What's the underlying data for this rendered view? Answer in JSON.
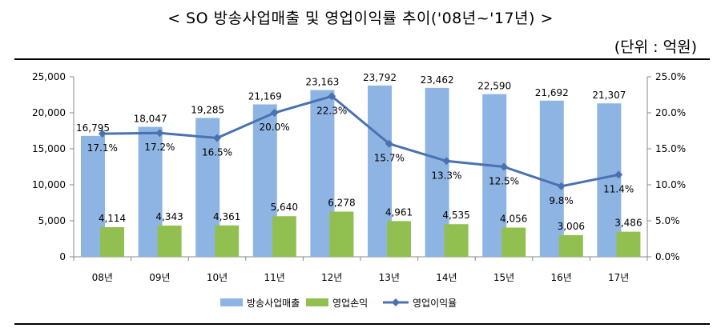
{
  "title": "< SO 방송사업매출 및 영업이익률 추이('08년~'17년) >",
  "unit": "(단위 : 억원)",
  "colors": {
    "revenue_bar": "#8DB4E2",
    "profit_bar": "#92C050",
    "margin_line": "#4A72B0"
  },
  "chart_data": {
    "type": "bar",
    "categories": [
      "08년",
      "09년",
      "10년",
      "11년",
      "12년",
      "13년",
      "14년",
      "15년",
      "16년",
      "17년"
    ],
    "series": [
      {
        "name": "방송사업매출",
        "kind": "bar",
        "axis": "left",
        "values": [
          16795,
          18047,
          19285,
          21169,
          23163,
          23792,
          23462,
          22590,
          21692,
          21307
        ],
        "labels": [
          "16,795",
          "18,047",
          "19,285",
          "21,169",
          "23,163",
          "23,792",
          "23,462",
          "22,590",
          "21,692",
          "21,307"
        ]
      },
      {
        "name": "영업손익",
        "kind": "bar",
        "axis": "left",
        "values": [
          4114,
          4343,
          4361,
          5640,
          6278,
          4961,
          4535,
          4056,
          3006,
          3486
        ],
        "labels": [
          "4,114",
          "4,343",
          "4,361",
          "5,640",
          "6,278",
          "4,961",
          "4,535",
          "4,056",
          "3,006",
          "3,486"
        ]
      },
      {
        "name": "영업이익율",
        "kind": "line",
        "axis": "right",
        "values": [
          17.1,
          17.2,
          16.5,
          20.0,
          22.3,
          15.7,
          13.3,
          12.5,
          9.8,
          11.4
        ],
        "labels": [
          "17.1%",
          "17.2%",
          "16.5%",
          "20.0%",
          "22.3%",
          "15.7%",
          "13.3%",
          "12.5%",
          "9.8%",
          "11.4%"
        ]
      }
    ],
    "left_axis": {
      "ylim": [
        0,
        25000
      ],
      "ticks": [
        0,
        5000,
        10000,
        15000,
        20000,
        25000
      ],
      "tick_labels": [
        "0",
        "5,000",
        "10,000",
        "15,000",
        "20,000",
        "25,000"
      ]
    },
    "right_axis": {
      "ylim": [
        0,
        25
      ],
      "ticks": [
        0,
        5,
        10,
        15,
        20,
        25
      ],
      "tick_labels": [
        "0.0%",
        "5.0%",
        "10.0%",
        "15.0%",
        "20.0%",
        "25.0%"
      ]
    },
    "grid": false,
    "legend_position": "bottom"
  }
}
